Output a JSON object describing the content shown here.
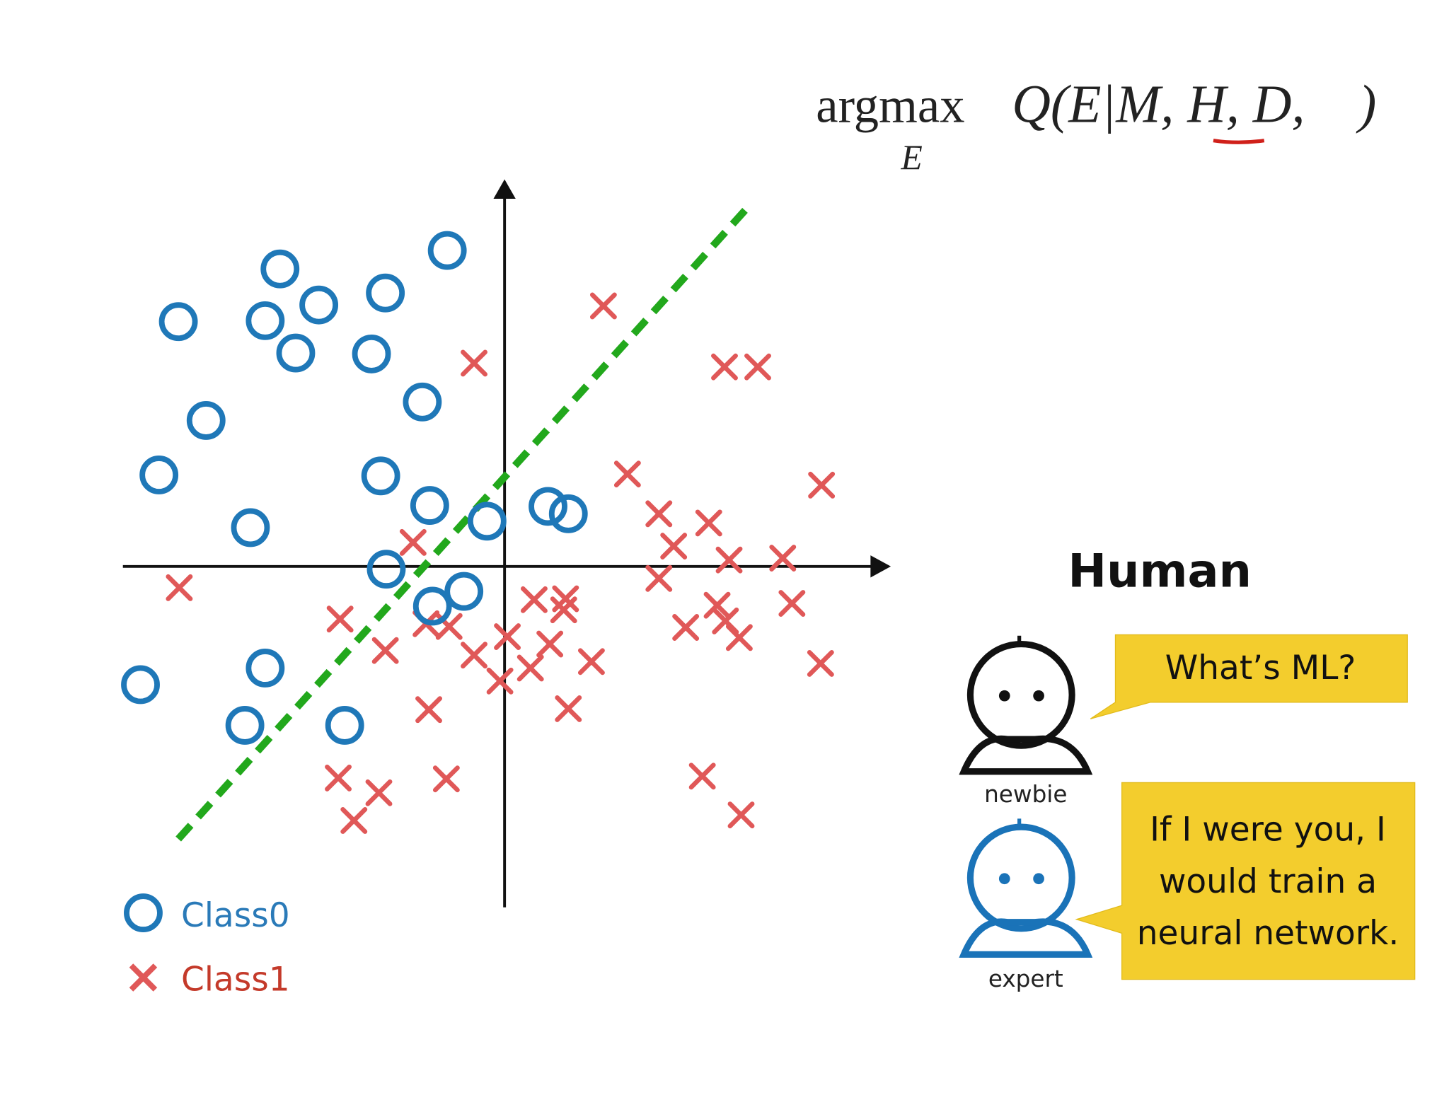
{
  "formula": {
    "operator": "argmax",
    "subscript": "E",
    "expression": "Q(E|M, H, D,    )"
  },
  "human": {
    "title": "Human",
    "newbie": {
      "label": "newbie",
      "speech": [
        "What’s ML?"
      ]
    },
    "expert": {
      "label": "expert",
      "speech": [
        "If I were you, I",
        "would train a",
        "neural network."
      ]
    }
  },
  "legend": {
    "class0": "Class0",
    "class1": "Class1"
  }
}
